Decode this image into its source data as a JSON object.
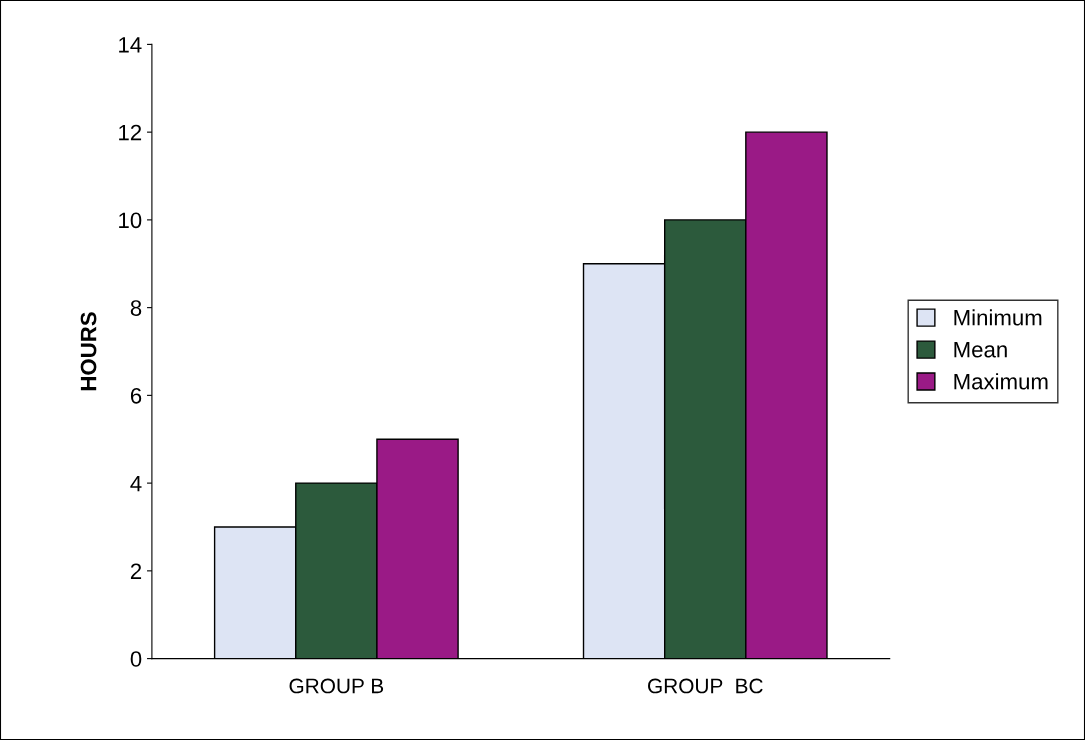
{
  "chart_data": {
    "type": "bar",
    "ylabel": "HOURS",
    "categories": [
      "GROUP B",
      "GROUP  BC"
    ],
    "series": [
      {
        "name": "Minimum",
        "color": "#dde4f4",
        "values": [
          3,
          9
        ]
      },
      {
        "name": "Mean",
        "color": "#2c5a3c",
        "values": [
          4,
          10
        ]
      },
      {
        "name": "Maximum",
        "color": "#9a1a86",
        "values": [
          5,
          12
        ]
      }
    ],
    "ylim": [
      0,
      14
    ],
    "yticks": [
      0,
      2,
      4,
      6,
      8,
      10,
      12,
      14
    ],
    "grid": false,
    "legend": "right"
  }
}
